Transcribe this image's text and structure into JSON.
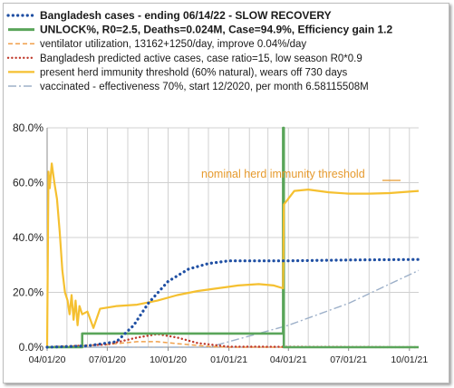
{
  "chart_data": {
    "type": "line",
    "x_ticks": [
      "04/01/20",
      "07/01/20",
      "10/01/20",
      "01/01/21",
      "04/01/21",
      "07/01/21",
      "10/01/21"
    ],
    "x_range": [
      "2020-04-01",
      "2021-10-15"
    ],
    "ylim": [
      0,
      80
    ],
    "y_ticks": [
      "0.0%",
      "20.0%",
      "40.0%",
      "60.0%",
      "80.0%"
    ],
    "grid": true,
    "legend_placement": "top-left",
    "annotation": "nominal herd immunity threshold",
    "series": [
      {
        "name": "Bangladesh cases - ending 06/14/22 - SLOW RECOVERY",
        "color": "#1f4fa3",
        "style": "dotted-bold",
        "points": [
          [
            "2020-04-01",
            0
          ],
          [
            "2020-06-01",
            0.5
          ],
          [
            "2020-07-15",
            2
          ],
          [
            "2020-08-10",
            8
          ],
          [
            "2020-09-01",
            16
          ],
          [
            "2020-10-01",
            24
          ],
          [
            "2020-11-01",
            28.5
          ],
          [
            "2020-12-01",
            30.5
          ],
          [
            "2021-01-01",
            31.5
          ],
          [
            "2021-03-01",
            31.5
          ],
          [
            "2021-04-01",
            31.5
          ],
          [
            "2021-07-01",
            31.8
          ],
          [
            "2021-10-15",
            32
          ]
        ]
      },
      {
        "name": "UNLOCK%, R0=2.5,  Deaths=0.024M, Case=94.9%, Efficiency gain 1.2",
        "color": "#5aa55a",
        "style": "solid-bold",
        "points": [
          [
            "2020-04-01",
            0
          ],
          [
            "2020-05-24",
            0
          ],
          [
            "2020-05-24",
            5
          ],
          [
            "2021-03-24",
            5
          ],
          [
            "2021-03-24",
            80
          ],
          [
            "2021-03-25",
            80
          ],
          [
            "2021-03-25",
            0
          ],
          [
            "2021-10-15",
            0
          ]
        ]
      },
      {
        "name": "ventilator utilization, 13162+1250/day, improve 0.04%/day",
        "color": "#f0a04b",
        "style": "dashed",
        "points": [
          [
            "2020-04-01",
            0
          ],
          [
            "2020-07-01",
            1
          ],
          [
            "2020-08-15",
            2
          ],
          [
            "2020-09-15",
            2
          ],
          [
            "2020-10-15",
            1.3
          ],
          [
            "2020-12-01",
            0.3
          ],
          [
            "2021-01-01",
            0
          ],
          [
            "2021-10-15",
            0
          ]
        ]
      },
      {
        "name": "Bangladesh predicted active cases, case ratio=15, low season R0*0.9",
        "color": "#c0392b",
        "style": "dotted",
        "points": [
          [
            "2020-04-01",
            0
          ],
          [
            "2020-07-01",
            1
          ],
          [
            "2020-08-15",
            3.5
          ],
          [
            "2020-09-15",
            4.8
          ],
          [
            "2020-10-15",
            3.5
          ],
          [
            "2020-11-15",
            1.5
          ],
          [
            "2021-01-01",
            0.2
          ],
          [
            "2021-10-15",
            0
          ]
        ]
      },
      {
        "name": "present herd immunity threshold (60% natural), wears off 730 days",
        "color": "#f5c030",
        "style": "solid",
        "points": [
          [
            "2020-04-01",
            0
          ],
          [
            "2020-04-03",
            64
          ],
          [
            "2020-04-05",
            58
          ],
          [
            "2020-04-08",
            67
          ],
          [
            "2020-04-12",
            60
          ],
          [
            "2020-04-16",
            54
          ],
          [
            "2020-04-20",
            42
          ],
          [
            "2020-04-24",
            28
          ],
          [
            "2020-04-28",
            20
          ],
          [
            "2020-05-02",
            17
          ],
          [
            "2020-05-05",
            12
          ],
          [
            "2020-05-08",
            19
          ],
          [
            "2020-05-11",
            10
          ],
          [
            "2020-05-14",
            17
          ],
          [
            "2020-05-17",
            8
          ],
          [
            "2020-05-20",
            15
          ],
          [
            "2020-05-24",
            12
          ],
          [
            "2020-06-01",
            13
          ],
          [
            "2020-06-10",
            7
          ],
          [
            "2020-06-20",
            14
          ],
          [
            "2020-07-15",
            15
          ],
          [
            "2020-08-15",
            15.5
          ],
          [
            "2020-09-15",
            17
          ],
          [
            "2020-10-15",
            19
          ],
          [
            "2020-11-15",
            20.5
          ],
          [
            "2020-12-15",
            21.5
          ],
          [
            "2021-01-15",
            22.5
          ],
          [
            "2021-02-15",
            23
          ],
          [
            "2021-03-10",
            22.5
          ],
          [
            "2021-03-24",
            21.5
          ],
          [
            "2021-03-25",
            52
          ],
          [
            "2021-04-10",
            57
          ],
          [
            "2021-05-01",
            57.5
          ],
          [
            "2021-06-01",
            56.5
          ],
          [
            "2021-07-01",
            56
          ],
          [
            "2021-08-01",
            56
          ],
          [
            "2021-09-01",
            56.2
          ],
          [
            "2021-10-15",
            57
          ]
        ]
      },
      {
        "name": "vaccinated - effectiveness 70%, start 12/2020, per month 6.58115508M",
        "color": "#9db0c9",
        "style": "dashdot",
        "points": [
          [
            "2020-04-01",
            0
          ],
          [
            "2020-12-01",
            0
          ],
          [
            "2021-01-01",
            2
          ],
          [
            "2021-04-01",
            8
          ],
          [
            "2021-07-01",
            16
          ],
          [
            "2021-10-15",
            28
          ]
        ]
      }
    ]
  },
  "colors": {
    "annotation": "#e69a2e",
    "grid": "#d0d0d0",
    "axis": "#8c8c8c"
  }
}
